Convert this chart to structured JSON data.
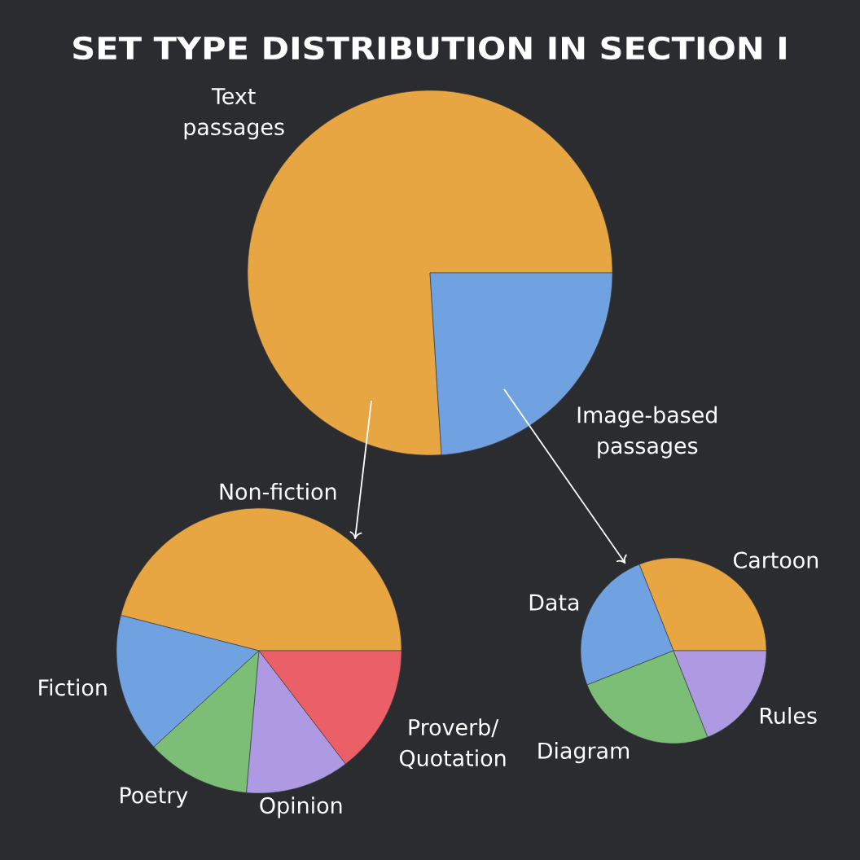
{
  "chart_data": [
    {
      "type": "pie",
      "title": "SET TYPE DISTRIBUTION IN SECTION I",
      "categories": [
        "Text passages",
        "Image-based passages"
      ],
      "values": [
        76,
        24
      ],
      "colors": [
        "#e7a641",
        "#70a1e0"
      ]
    },
    {
      "type": "pie",
      "categories": [
        "Non-fiction",
        "Fiction",
        "Poetry",
        "Opinion",
        "Proverb/Quotation"
      ],
      "values": [
        46,
        15.8,
        11.8,
        11.8,
        14.6
      ],
      "colors": [
        "#e7a641",
        "#70a1e0",
        "#7dbe77",
        "#ad9ae2",
        "#ea6066"
      ]
    },
    {
      "type": "pie",
      "categories": [
        "Cartoon",
        "Data",
        "Diagram",
        "Rules"
      ],
      "values": [
        31,
        25,
        25,
        19
      ],
      "colors": [
        "#e7a641",
        "#70a1e0",
        "#7dbe77",
        "#ad9ae2"
      ]
    }
  ]
}
